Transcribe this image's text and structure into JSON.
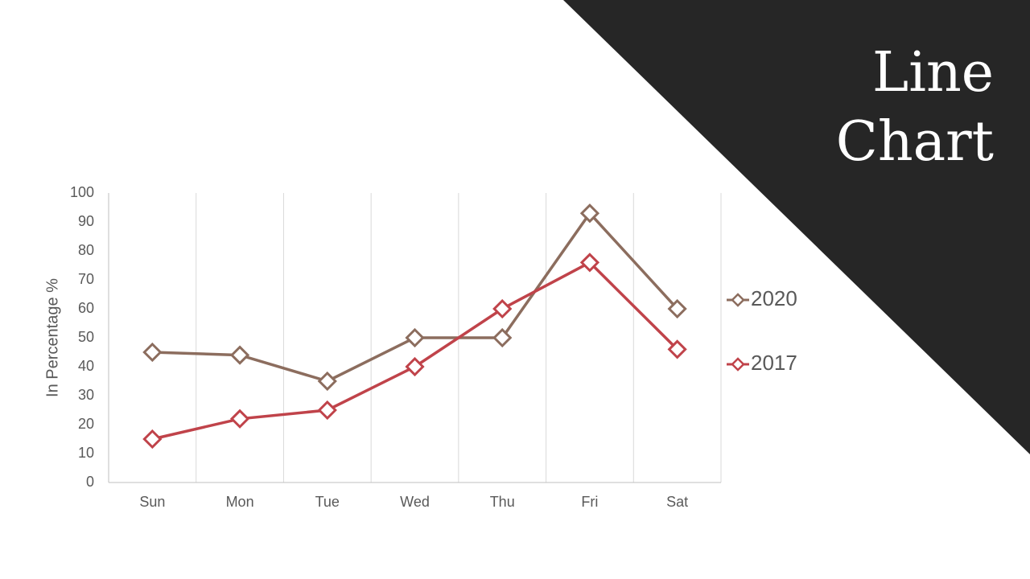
{
  "title": "Line Chart",
  "chart_data": {
    "type": "line",
    "y_label": "In Percentage %",
    "categories": [
      "Sun",
      "Mon",
      "Tue",
      "Wed",
      "Thu",
      "Fri",
      "Sat"
    ],
    "series": [
      {
        "name": "2020",
        "color": "#8c6d5e",
        "values": [
          45,
          44,
          35,
          50,
          50,
          93,
          60
        ]
      },
      {
        "name": "2017",
        "color": "#c0434a",
        "values": [
          15,
          22,
          25,
          40,
          60,
          76,
          46
        ]
      }
    ],
    "ylim": [
      0,
      100
    ],
    "yticks": [
      0,
      10,
      20,
      30,
      40,
      50,
      60,
      70,
      80,
      90,
      100
    ],
    "legend": "right"
  }
}
